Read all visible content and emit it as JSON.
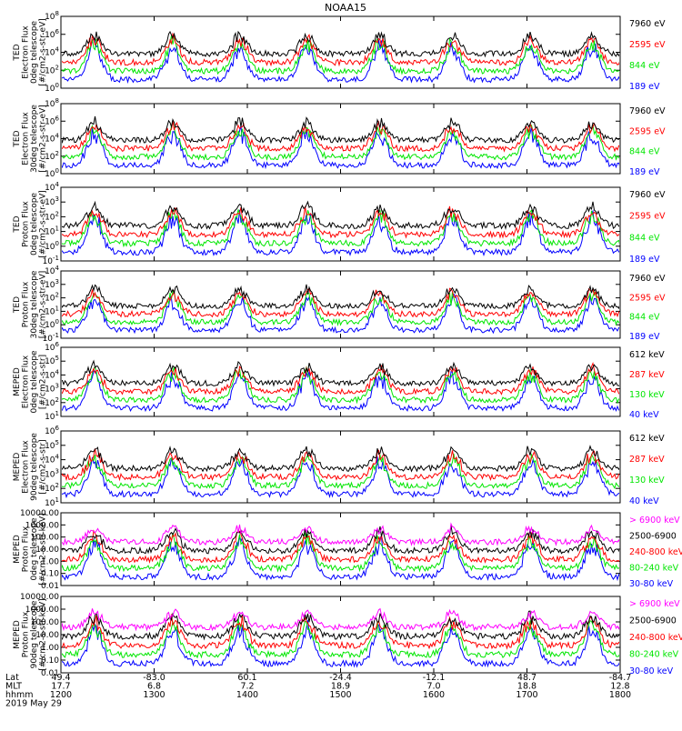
{
  "title": "NOAA15",
  "colors": {
    "blue": "#0000ff",
    "red": "#ff0000",
    "green": "#00e600",
    "black": "#000000",
    "magenta": "#ff00ff"
  },
  "footer": {
    "rows": [
      {
        "label": "Lat",
        "values": [
          "49.4",
          "-83.0",
          "60.1",
          "-24.4",
          "-12.1",
          "48.7",
          "-84.7"
        ]
      },
      {
        "label": "MLT",
        "values": [
          "17.7",
          "6.8",
          "7.2",
          "18.9",
          "7.0",
          "18.8",
          "12.8"
        ]
      },
      {
        "label": "hhmm",
        "values": [
          "1200",
          "1300",
          "1400",
          "1500",
          "1600",
          "1700",
          "1800"
        ]
      }
    ],
    "date": "2019 May 29"
  },
  "chart_data": [
    {
      "type": "line",
      "ylabel": [
        "TED",
        "Electron Flux",
        "0deg telescope",
        "[#/cm2-s-str-eV]"
      ],
      "ytick_powers": [
        0,
        2,
        4,
        6,
        8
      ],
      "log_scale": true,
      "series": [
        {
          "name": "7960 eV",
          "color": "black"
        },
        {
          "name": "2595 eV",
          "color": "red"
        },
        {
          "name": "844 eV",
          "color": "green"
        },
        {
          "name": "189 eV",
          "color": "blue"
        }
      ]
    },
    {
      "type": "line",
      "ylabel": [
        "TED",
        "Electron Flux",
        "30deg telescope",
        "[#/cm2-s-str-eV]"
      ],
      "ytick_powers": [
        0,
        2,
        4,
        6,
        8
      ],
      "log_scale": true,
      "series": [
        {
          "name": "7960 eV",
          "color": "black"
        },
        {
          "name": "2595 eV",
          "color": "red"
        },
        {
          "name": "844 eV",
          "color": "green"
        },
        {
          "name": "189 eV",
          "color": "blue"
        }
      ]
    },
    {
      "type": "line",
      "ylabel": [
        "TED",
        "Proton Flux",
        "0deg telescope",
        "[#/cm2-s-str-eV]"
      ],
      "ytick_powers": [
        -1,
        0,
        1,
        2,
        3,
        4
      ],
      "log_scale": true,
      "series": [
        {
          "name": "7960 eV",
          "color": "black"
        },
        {
          "name": "2595 eV",
          "color": "red"
        },
        {
          "name": "844 eV",
          "color": "green"
        },
        {
          "name": "189 eV",
          "color": "blue"
        }
      ]
    },
    {
      "type": "line",
      "ylabel": [
        "TED",
        "Proton Flux",
        "30deg telescope",
        "[#/cm2-s-str-eV]"
      ],
      "ytick_powers": [
        -1,
        0,
        1,
        2,
        3,
        4
      ],
      "log_scale": true,
      "series": [
        {
          "name": "7960 eV",
          "color": "black"
        },
        {
          "name": "2595 eV",
          "color": "red"
        },
        {
          "name": "844 eV",
          "color": "green"
        },
        {
          "name": "189 eV",
          "color": "blue"
        }
      ]
    },
    {
      "type": "line",
      "ylabel": [
        "MEPED",
        "Electron Flux",
        "0deg telescope",
        "[#/cm2-s-str]"
      ],
      "ytick_powers": [
        1,
        2,
        3,
        4,
        5,
        6
      ],
      "log_scale": true,
      "series": [
        {
          "name": "612 keV",
          "color": "black"
        },
        {
          "name": "287 keV",
          "color": "red"
        },
        {
          "name": "130 keV",
          "color": "green"
        },
        {
          "name": "40 keV",
          "color": "blue"
        }
      ]
    },
    {
      "type": "line",
      "ylabel": [
        "MEPED",
        "Electron Flux",
        "90deg telescope",
        "[#/cm2-s-str]"
      ],
      "ytick_powers": [
        1,
        2,
        3,
        4,
        5,
        6
      ],
      "log_scale": true,
      "series": [
        {
          "name": "612 keV",
          "color": "black"
        },
        {
          "name": "287 keV",
          "color": "red"
        },
        {
          "name": "130 keV",
          "color": "green"
        },
        {
          "name": "40 keV",
          "color": "blue"
        }
      ]
    },
    {
      "type": "line",
      "ylabel": [
        "MEPED",
        "Proton Flux",
        "0deg telescope",
        "[#/cm2-s-str-keV]"
      ],
      "ytick_labels": [
        "0.01",
        "0.10",
        "1.00",
        "10.00",
        "100.00",
        "1000.00",
        "10000.00"
      ],
      "log_scale": true,
      "series": [
        {
          "name": "> 6900 keV",
          "color": "magenta"
        },
        {
          "name": "2500-6900",
          "color": "black"
        },
        {
          "name": "240-800 keV",
          "color": "red"
        },
        {
          "name": "80-240 keV",
          "color": "green"
        },
        {
          "name": "30-80 keV",
          "color": "blue"
        }
      ]
    },
    {
      "type": "line",
      "ylabel": [
        "MEPED",
        "Proton Flux",
        "90deg telescope",
        "[#/cm2-s-str-keV]"
      ],
      "ytick_labels": [
        "0.01",
        "0.10",
        "1.00",
        "10.00",
        "100.00",
        "1000.00",
        "10000.00"
      ],
      "log_scale": true,
      "series": [
        {
          "name": "> 6900 keV",
          "color": "magenta"
        },
        {
          "name": "2500-6900",
          "color": "black"
        },
        {
          "name": "240-800 keV",
          "color": "red"
        },
        {
          "name": "80-240 keV",
          "color": "green"
        },
        {
          "name": "30-80 keV",
          "color": "blue"
        }
      ]
    }
  ]
}
